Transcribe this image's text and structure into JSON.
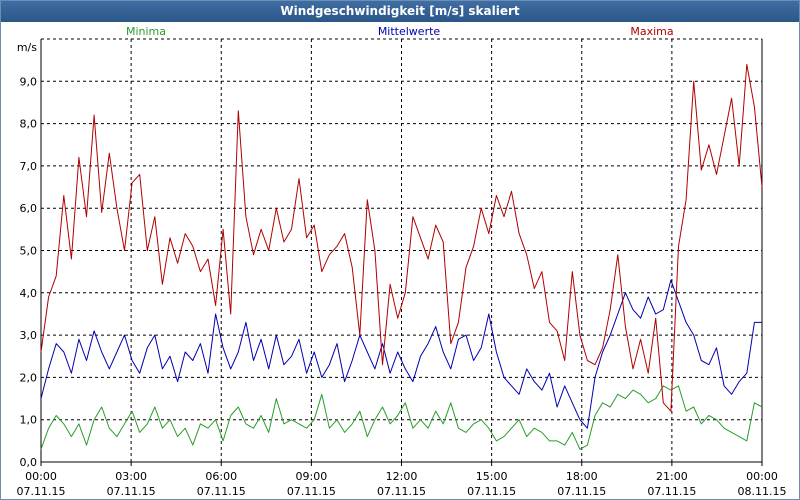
{
  "window": {
    "title": "Windgeschwindigkeit [m/s] skaliert"
  },
  "chart_data": {
    "type": "line",
    "title": "Windgeschwindigkeit [m/s] skaliert",
    "ylabel": "m/s",
    "ylim": [
      0,
      10
    ],
    "xlim": [
      0,
      96
    ],
    "grid": true,
    "legend_position": "top",
    "y_ticks": [
      "0,0",
      "1,0",
      "2,0",
      "3,0",
      "4,0",
      "5,0",
      "6,0",
      "7,0",
      "8,0",
      "9,0"
    ],
    "x_ticks": [
      {
        "time": "00:00",
        "date": "07.11.15"
      },
      {
        "time": "03:00",
        "date": "07.11.15"
      },
      {
        "time": "06:00",
        "date": "07.11.15"
      },
      {
        "time": "09:00",
        "date": "07.11.15"
      },
      {
        "time": "12:00",
        "date": "07.11.15"
      },
      {
        "time": "15:00",
        "date": "07.11.15"
      },
      {
        "time": "18:00",
        "date": "07.11.15"
      },
      {
        "time": "21:00",
        "date": "07.11.15"
      },
      {
        "time": "00:00",
        "date": "08.11.15"
      }
    ],
    "series": [
      {
        "name": "Minima",
        "color": "#2a9d2a",
        "values": [
          0.3,
          0.8,
          1.1,
          0.9,
          0.6,
          0.9,
          0.4,
          1.0,
          1.3,
          0.8,
          0.6,
          0.9,
          1.2,
          0.7,
          0.9,
          1.3,
          0.8,
          1.0,
          0.6,
          0.8,
          0.4,
          0.9,
          0.8,
          1.0,
          0.5,
          1.1,
          1.3,
          0.9,
          0.8,
          1.1,
          0.7,
          1.5,
          0.9,
          1.0,
          0.9,
          0.8,
          1.0,
          1.6,
          0.8,
          1.0,
          0.7,
          0.9,
          1.2,
          0.6,
          1.0,
          1.3,
          0.9,
          1.1,
          1.4,
          0.8,
          1.0,
          0.8,
          1.2,
          0.9,
          1.4,
          0.8,
          0.7,
          0.9,
          1.0,
          0.8,
          0.5,
          0.6,
          0.8,
          1.0,
          0.6,
          0.8,
          0.7,
          0.5,
          0.5,
          0.4,
          0.7,
          0.3,
          0.4,
          1.1,
          1.4,
          1.3,
          1.6,
          1.5,
          1.7,
          1.6,
          1.4,
          1.5,
          1.8,
          1.7,
          1.8,
          1.2,
          1.3,
          0.9,
          1.1,
          1.0,
          0.8,
          0.7,
          0.6,
          0.5,
          1.4,
          1.3
        ]
      },
      {
        "name": "Mittelwerte",
        "color": "#0000b0",
        "values": [
          1.5,
          2.2,
          2.8,
          2.6,
          2.1,
          2.9,
          2.4,
          3.1,
          2.6,
          2.2,
          2.6,
          3.0,
          2.4,
          2.1,
          2.7,
          3.0,
          2.2,
          2.5,
          1.9,
          2.6,
          2.4,
          2.8,
          2.1,
          3.5,
          2.7,
          2.2,
          2.6,
          3.3,
          2.4,
          2.9,
          2.2,
          3.0,
          2.3,
          2.5,
          2.9,
          2.1,
          2.6,
          2.0,
          2.3,
          2.8,
          1.9,
          2.4,
          3.0,
          2.6,
          2.2,
          2.8,
          2.1,
          2.6,
          2.2,
          1.9,
          2.5,
          2.8,
          3.2,
          2.6,
          2.2,
          2.9,
          3.0,
          2.4,
          2.7,
          3.5,
          2.6,
          2.0,
          1.8,
          1.6,
          2.2,
          1.9,
          1.7,
          2.1,
          1.3,
          1.8,
          1.4,
          1.0,
          0.8,
          2.0,
          2.6,
          3.0,
          3.5,
          4.0,
          3.6,
          3.4,
          3.9,
          3.5,
          3.6,
          4.3,
          3.8,
          3.3,
          3.0,
          2.4,
          2.3,
          2.7,
          1.8,
          1.6,
          1.9,
          2.1,
          3.3,
          3.3
        ]
      },
      {
        "name": "Maxima",
        "color": "#b00000",
        "values": [
          2.6,
          3.9,
          4.4,
          6.3,
          4.8,
          7.2,
          5.8,
          8.2,
          5.9,
          7.3,
          6.0,
          5.0,
          6.6,
          6.8,
          5.0,
          5.8,
          4.2,
          5.3,
          4.7,
          5.4,
          5.1,
          4.5,
          4.8,
          3.7,
          5.5,
          3.5,
          8.3,
          5.8,
          4.9,
          5.5,
          5.0,
          6.0,
          5.2,
          5.5,
          6.7,
          5.3,
          5.6,
          4.5,
          4.9,
          5.1,
          5.4,
          4.6,
          3.0,
          6.2,
          5.0,
          2.3,
          4.2,
          3.4,
          4.0,
          5.8,
          5.3,
          4.8,
          5.6,
          5.2,
          2.8,
          3.3,
          4.6,
          5.1,
          6.0,
          5.4,
          6.3,
          5.8,
          6.4,
          5.4,
          4.9,
          4.1,
          4.5,
          3.3,
          3.1,
          2.4,
          4.5,
          3.0,
          2.4,
          2.3,
          2.7,
          3.6,
          4.9,
          3.2,
          2.2,
          2.9,
          2.1,
          3.4,
          1.4,
          1.2,
          5.1,
          6.2,
          9.0,
          6.9,
          7.5,
          6.8,
          7.7,
          8.6,
          7.0,
          9.4,
          8.4,
          6.5
        ]
      }
    ]
  }
}
